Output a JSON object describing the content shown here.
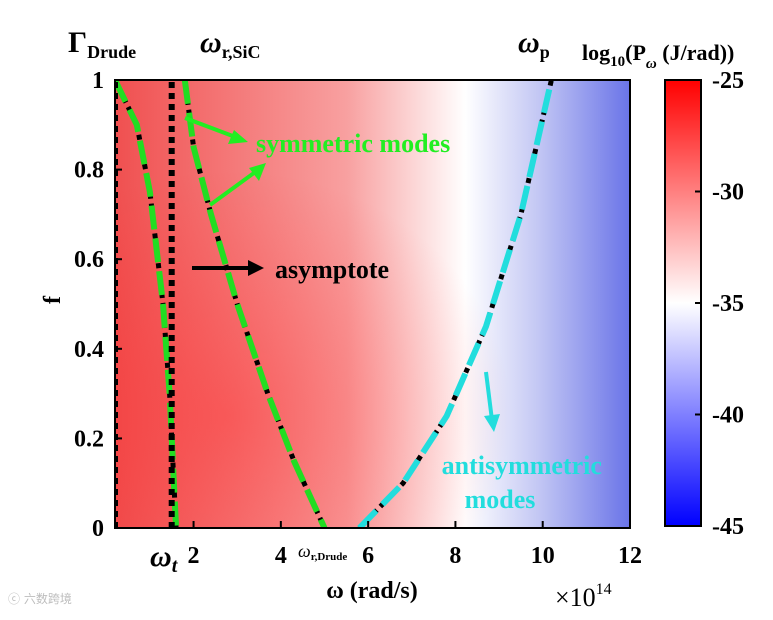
{
  "chart_data": {
    "type": "heatmap",
    "title": "",
    "xlabel": "ω (rad/s)",
    "x_multiplier": "×10^14",
    "ylabel": "f",
    "xlim": [
      0.2,
      12
    ],
    "ylim": [
      0,
      1
    ],
    "xticks": [
      {
        "value": 2,
        "label": "2"
      },
      {
        "value": 4,
        "label": "4"
      },
      {
        "value": 6,
        "label": "6"
      },
      {
        "value": 8,
        "label": "8"
      },
      {
        "value": 10,
        "label": "10"
      },
      {
        "value": 12,
        "label": "12"
      }
    ],
    "yticks": [
      {
        "value": 0,
        "label": "0"
      },
      {
        "value": 0.2,
        "label": "0.2"
      },
      {
        "value": 0.4,
        "label": "0.4"
      },
      {
        "value": 0.6,
        "label": "0.6"
      },
      {
        "value": 0.8,
        "label": "0.8"
      },
      {
        "value": 1,
        "label": "1"
      }
    ],
    "colorbar": {
      "label": "log10(Pω (J/rad))",
      "range": [
        -45,
        -25
      ],
      "ticks": [
        "-25",
        "-30",
        "-35",
        "-40",
        "-45"
      ],
      "colors": [
        "#0000ff",
        "#ffffff",
        "#ff0000"
      ]
    },
    "markers": {
      "gamma_drude": {
        "label": "ΓDrude",
        "x": 0.2
      },
      "omega_t": {
        "label": "ωt",
        "x": 1.5
      },
      "omega_r_sic": {
        "label": "ωr,SiC",
        "x": 1.8
      },
      "omega_r_drude": {
        "label": "ωr,Drude",
        "x": 5.1
      },
      "omega_p": {
        "label": "ωp",
        "x": 10.2
      }
    },
    "curves": [
      {
        "name": "symmetric mode (inner)",
        "color": "#22dd22",
        "points": [
          [
            0.2,
            1.0
          ],
          [
            0.7,
            0.9
          ],
          [
            1.0,
            0.75
          ],
          [
            1.3,
            0.5
          ],
          [
            1.45,
            0.3
          ],
          [
            1.55,
            0.1
          ],
          [
            1.6,
            0.0
          ]
        ]
      },
      {
        "name": "symmetric mode (outer)",
        "color": "#22dd22",
        "points": [
          [
            1.8,
            1.0
          ],
          [
            2.0,
            0.85
          ],
          [
            2.4,
            0.7
          ],
          [
            3.0,
            0.5
          ],
          [
            3.7,
            0.3
          ],
          [
            4.3,
            0.15
          ],
          [
            5.0,
            0.0
          ]
        ]
      },
      {
        "name": "antisymmetric mode",
        "color": "#22dddd",
        "points": [
          [
            5.8,
            0.0
          ],
          [
            6.8,
            0.1
          ],
          [
            7.8,
            0.25
          ],
          [
            8.7,
            0.45
          ],
          [
            9.5,
            0.7
          ],
          [
            10.2,
            1.0
          ]
        ]
      },
      {
        "name": "asymptote",
        "color": "#000000",
        "points": [
          [
            1.5,
            0.0
          ],
          [
            1.5,
            1.0
          ]
        ]
      },
      {
        "name": "Γ Drude line",
        "color": "#000000",
        "points": [
          [
            0.2,
            0.0
          ],
          [
            0.2,
            1.0
          ]
        ]
      }
    ],
    "annotations": [
      {
        "text": "symmetric modes",
        "color": "#22dd22"
      },
      {
        "text": "asymptote",
        "color": "#000000"
      },
      {
        "text": "antisymmetric modes",
        "color": "#22dddd"
      }
    ],
    "watermark": "六数跨境"
  }
}
